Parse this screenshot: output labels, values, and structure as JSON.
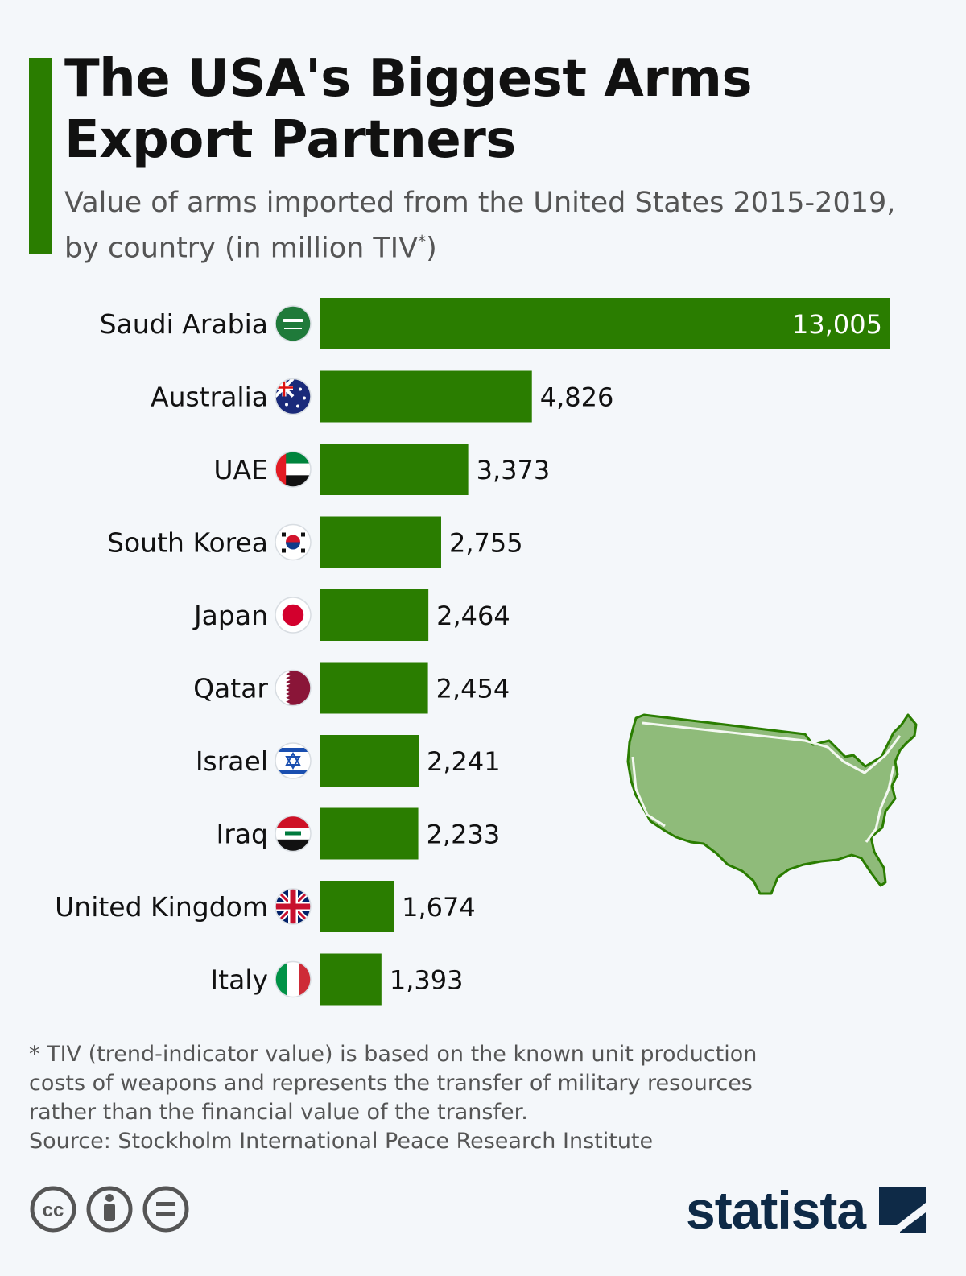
{
  "header": {
    "title_line1": "The USA's Biggest Arms",
    "title_line2": "Export Partners",
    "subtitle_line1": "Value of arms imported from the United States 2015-2019,",
    "subtitle_line2": "by country (in million TIV",
    "subtitle_sup": "*",
    "subtitle_end": ")"
  },
  "chart_data": {
    "type": "bar",
    "orientation": "horizontal",
    "title": "The USA's Biggest Arms Export Partners",
    "subtitle": "Value of arms imported from the United States 2015-2019, by country (in million TIV*)",
    "categories": [
      "Saudi Arabia",
      "Australia",
      "UAE",
      "South Korea",
      "Japan",
      "Qatar",
      "Israel",
      "Iraq",
      "United Kingdom",
      "Italy"
    ],
    "values": [
      13005,
      4826,
      3373,
      2755,
      2464,
      2454,
      2241,
      2233,
      1674,
      1393
    ],
    "value_labels": [
      "13,005",
      "4,826",
      "3,373",
      "2,755",
      "2,464",
      "2,454",
      "2,241",
      "2,233",
      "1,674",
      "1,393"
    ],
    "flags": [
      "saudi-arabia-flag-icon",
      "australia-flag-icon",
      "uae-flag-icon",
      "south-korea-flag-icon",
      "japan-flag-icon",
      "qatar-flag-icon",
      "israel-flag-icon",
      "iraq-flag-icon",
      "united-kingdom-flag-icon",
      "italy-flag-icon"
    ],
    "xlim": [
      0,
      13005
    ],
    "bar_color": "#2a7d00",
    "grid": false,
    "legend": "none"
  },
  "colors": {
    "accent": "#2a7d00",
    "map_fill": "#8fbb7a",
    "brand": "#0e2a47",
    "background": "#f4f7fa"
  },
  "footnote": {
    "line1": "* TIV (trend-indicator value) is based on the known unit production",
    "line2": "costs of weapons and represents the transfer of military resources",
    "line3": "rather than the financial value of the transfer.",
    "source": "Source: Stockholm International Peace Research Institute"
  },
  "license": {
    "icons": [
      "cc-icon",
      "attribution-icon",
      "no-derivatives-icon"
    ]
  },
  "brand": {
    "name": "statista",
    "icon": "statista-logo-icon"
  }
}
